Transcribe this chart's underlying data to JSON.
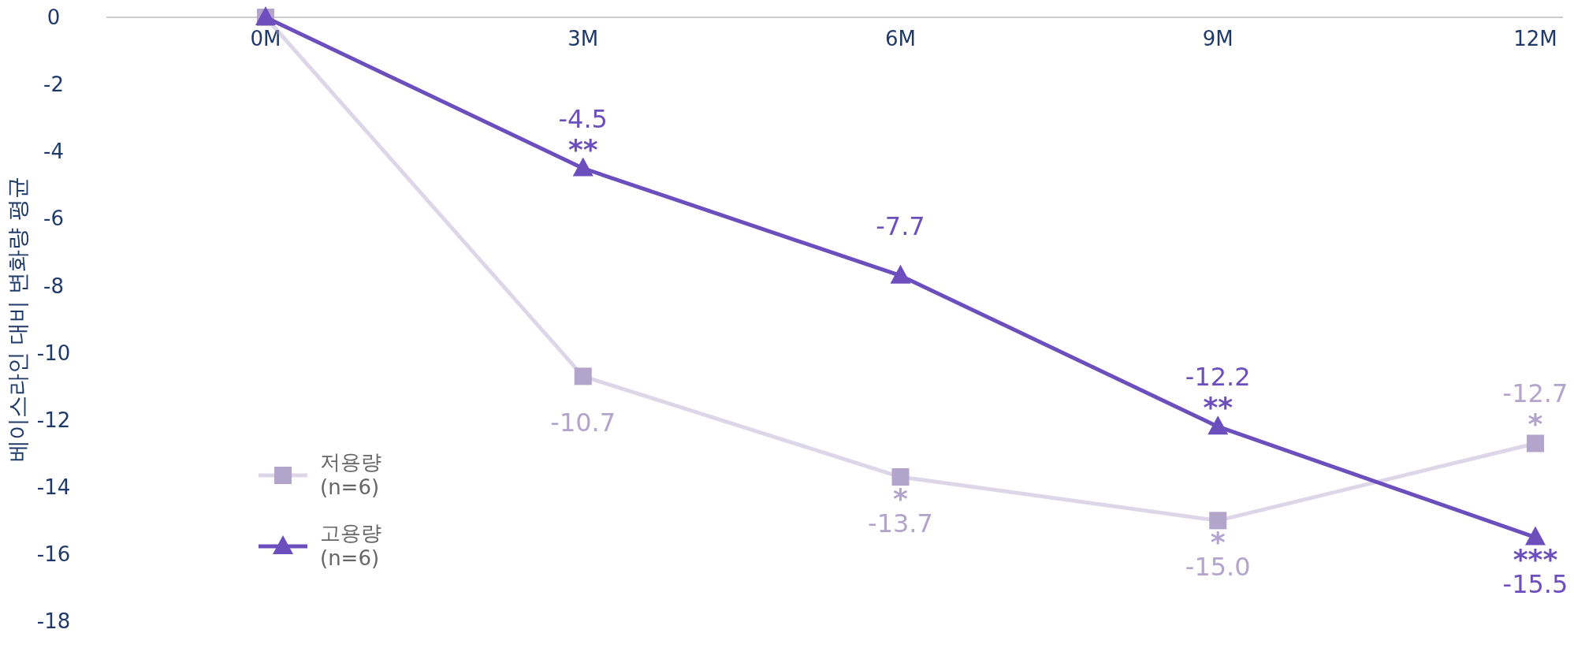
{
  "chart_data": {
    "type": "line",
    "ylabel": "베이스라인 대비 변화량 평균",
    "categories": [
      "0M",
      "3M",
      "6M",
      "9M",
      "12M"
    ],
    "series": [
      {
        "name": "저용량 (n=6)",
        "color": "#b3a4cc",
        "marker": "square",
        "values": [
          0,
          -10.7,
          -13.7,
          -15.0,
          -12.7
        ],
        "value_labels": [
          null,
          "-10.7",
          "-13.7",
          "-15.0",
          "-12.7"
        ]
      },
      {
        "name": "고용량 (n=6)",
        "color": "#6c4fbc",
        "marker": "triangle",
        "values": [
          0,
          -4.5,
          -7.7,
          -12.2,
          -15.5
        ],
        "value_labels": [
          null,
          "-4.5",
          "-7.7",
          "-12.2",
          "-15.5"
        ]
      }
    ],
    "ylim": [
      -18,
      0
    ],
    "yticks": [
      {
        "value": 0,
        "label": "0"
      },
      {
        "value": -2,
        "label": "-2"
      },
      {
        "value": -4,
        "label": "-4"
      },
      {
        "value": -6,
        "label": "-6"
      },
      {
        "value": -8,
        "label": "-8"
      },
      {
        "value": -10,
        "label": "-10"
      },
      {
        "value": -12,
        "label": "-12"
      },
      {
        "value": -14,
        "label": "-14"
      },
      {
        "value": -16,
        "label": "-16"
      },
      {
        "value": -18,
        "label": "-18"
      }
    ],
    "annotations": [
      {
        "text": "**",
        "x": "3M",
        "y": -4.5
      },
      {
        "text": "*",
        "x": "6M",
        "y": -13.7
      },
      {
        "text": "*",
        "x": "9M",
        "y": -15.0
      },
      {
        "text": "**",
        "x": "9M",
        "y": -12.2
      },
      {
        "text": "*",
        "x": "12M",
        "y": -12.7
      },
      {
        "text": "***",
        "x": "12M",
        "y": -15.5
      }
    ],
    "grid": false,
    "legend": "bottom left"
  }
}
